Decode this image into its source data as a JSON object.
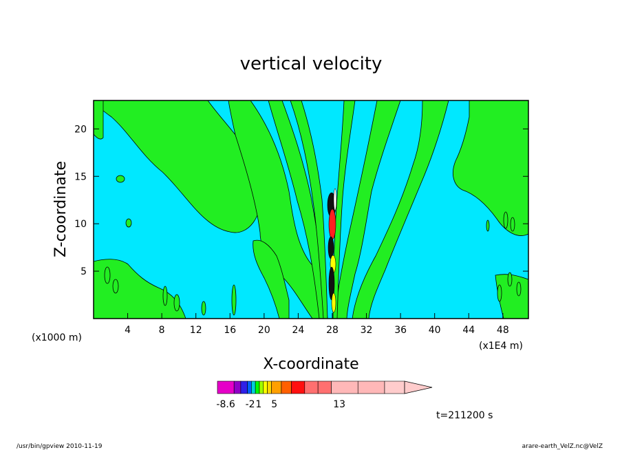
{
  "chart_data": {
    "type": "heatmap",
    "title": "vertical velocity",
    "xlabel": "X-coordinate",
    "ylabel": "Z-coordinate",
    "x_unit_label": "(x1000 m)",
    "x_scale_label": "(x1E4 m)",
    "time_label": "t=211200 s",
    "xlim": [
      0,
      51
    ],
    "ylim": [
      0,
      23
    ],
    "x_ticks": [
      4,
      8,
      12,
      16,
      20,
      24,
      28,
      32,
      36,
      40,
      44,
      48
    ],
    "y_ticks": [
      5,
      10,
      15,
      20
    ],
    "colorbar": {
      "labels": [
        {
          "value": -8.6,
          "text": "-8.6",
          "bin": 0.5
        },
        {
          "value": -2,
          "text": "-2",
          "bin": 3.7
        },
        {
          "value": 1,
          "text": "1",
          "bin": 5.8
        },
        {
          "value": 5,
          "text": "5",
          "bin": 9.3
        },
        {
          "value": 13,
          "text": "13",
          "bin": 14.3
        }
      ],
      "colors": [
        "#e600c8",
        "#9000c8",
        "#3020e8",
        "#0060ff",
        "#00d0d8",
        "#00ff00",
        "#a0ff00",
        "#ffff00",
        "#ffd800",
        "#ffa000",
        "#ff6000",
        "#ff1010",
        "#ff7070",
        "#ff7070",
        "#ffb8b8",
        "#ffb8b8",
        "#ffb8b8",
        "#ffb8b8",
        "#ffcccc"
      ],
      "bin_widths": [
        2.5,
        1,
        1,
        0.6,
        0.6,
        0.6,
        0.6,
        0.6,
        0.6,
        1.5,
        1.5,
        2,
        2,
        2,
        4,
        4,
        0,
        0,
        3
      ]
    },
    "background_color": "#00e8ff",
    "positive_color": "#22ee22",
    "core_colors": [
      "#111111",
      "#ff2020",
      "#ffff00"
    ],
    "footer_left": "/usr/bin/gpview   2010-11-19",
    "footer_right": "arare-earth_VelZ.nc@VelZ"
  }
}
